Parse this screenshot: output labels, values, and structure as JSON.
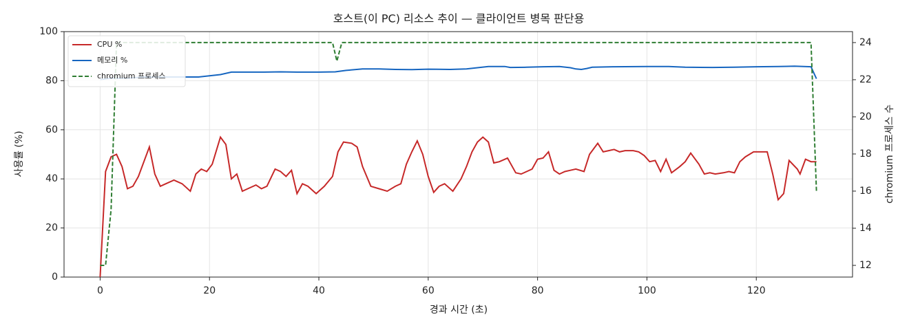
{
  "chart_data": {
    "type": "line",
    "title": "호스트(이 PC) 리소스 추이 — 클라이언트 병목 판단용",
    "xlabel": "경과 시간 (초)",
    "ylabel": "사용률 (%)",
    "y2label": "chromium 프로세스 수",
    "xlim": [
      -6.6,
      137.6
    ],
    "xticks": [
      0,
      20,
      40,
      60,
      80,
      100,
      120
    ],
    "ylim": [
      0,
      100
    ],
    "yticks": [
      0,
      20,
      40,
      60,
      80,
      100
    ],
    "y2lim": [
      11.37,
      24.59
    ],
    "y2ticks": [
      12,
      14,
      16,
      18,
      20,
      22,
      24
    ],
    "grid": true,
    "legend": "upper left",
    "series": [
      {
        "name": "CPU %",
        "color": "#c62828",
        "dash": false,
        "x": [
          0,
          1,
          2,
          3,
          4,
          5,
          6,
          7,
          9,
          10,
          11,
          12,
          13.5,
          15,
          16.5,
          17.5,
          18.5,
          19.5,
          20.5,
          22,
          23,
          24,
          25,
          26,
          27,
          28.5,
          29.5,
          30.5,
          32,
          33,
          34,
          35,
          36,
          37,
          38,
          39.5,
          41,
          42.5,
          43.5,
          44.5,
          46,
          47,
          48,
          49.5,
          51,
          52.5,
          54,
          55,
          56,
          57,
          58,
          59,
          60,
          61,
          62,
          63,
          64.5,
          66,
          67,
          68,
          69,
          70,
          71,
          72,
          73,
          74.5,
          76,
          77,
          78,
          79,
          80,
          81,
          82,
          83,
          84,
          85,
          86,
          87,
          88.5,
          89.5,
          91,
          92,
          93,
          94,
          95,
          96,
          97.5,
          98.5,
          99.5,
          100.5,
          101.5,
          102.5,
          103.5,
          104.5,
          106,
          107,
          108,
          109.5,
          110.5,
          111.5,
          112.5,
          114,
          115,
          116,
          117,
          118,
          119.5,
          120.5,
          122,
          123,
          124,
          125,
          126,
          127.5,
          128,
          129,
          130,
          131
        ],
        "values": [
          0,
          43,
          49,
          50,
          45,
          36,
          37,
          41,
          53,
          42,
          37,
          38,
          39.5,
          38,
          35,
          42,
          44,
          43,
          46,
          57,
          54,
          40,
          42,
          35,
          36,
          37.5,
          36,
          37,
          44,
          43,
          41,
          43.5,
          34,
          38,
          37,
          34,
          37,
          41,
          51,
          55,
          54.5,
          53,
          45,
          37,
          36,
          35,
          37,
          38,
          46,
          51,
          55.5,
          50,
          41,
          34.5,
          37,
          38,
          35,
          40,
          45,
          51,
          55,
          57,
          55,
          46.5,
          47,
          48.5,
          42.5,
          42,
          43,
          44,
          48,
          48.5,
          51,
          43.5,
          42,
          43,
          43.5,
          44,
          43,
          50,
          54.5,
          51,
          51.5,
          52,
          51,
          51.5,
          51.5,
          51,
          49.5,
          47,
          47.5,
          43,
          48,
          42.5,
          45,
          47,
          50.5,
          46,
          42,
          42.5,
          42,
          42.5,
          43,
          42.5,
          47,
          49,
          51,
          51,
          51,
          42,
          31.5,
          34,
          47.5,
          44,
          42,
          48,
          47,
          47
        ]
      },
      {
        "name": "메모리 %",
        "color": "#1565c0",
        "dash": false,
        "x": [
          0,
          2,
          5,
          8,
          12,
          15,
          18,
          20,
          22,
          24,
          27,
          30,
          33,
          36,
          40,
          43,
          45,
          48,
          51,
          54,
          57,
          60,
          64,
          67,
          69,
          71,
          74,
          75,
          78,
          81,
          84,
          86,
          87,
          88,
          89,
          90,
          94,
          100,
          104,
          107,
          112,
          116,
          120,
          124,
          127,
          130,
          131
        ],
        "values": [
          80.5,
          81,
          81,
          81.5,
          81.5,
          81.5,
          81.5,
          82,
          82.5,
          83.5,
          83.5,
          83.5,
          83.6,
          83.5,
          83.5,
          83.6,
          84.2,
          84.8,
          84.8,
          84.6,
          84.5,
          84.7,
          84.6,
          84.8,
          85.3,
          85.8,
          85.8,
          85.4,
          85.5,
          85.7,
          85.8,
          85.3,
          84.8,
          84.6,
          85,
          85.5,
          85.7,
          85.8,
          85.8,
          85.5,
          85.4,
          85.5,
          85.7,
          85.8,
          85.9,
          85.7,
          80.8
        ]
      },
      {
        "name": "chromium 프로세스",
        "color": "#2e7d32",
        "dash": true,
        "axis": "y2",
        "x": [
          0,
          1,
          2,
          3,
          42.5,
          43.3,
          44.2,
          130,
          131
        ],
        "values": [
          12,
          12,
          15,
          24,
          24,
          23,
          24,
          24,
          16
        ]
      }
    ]
  }
}
